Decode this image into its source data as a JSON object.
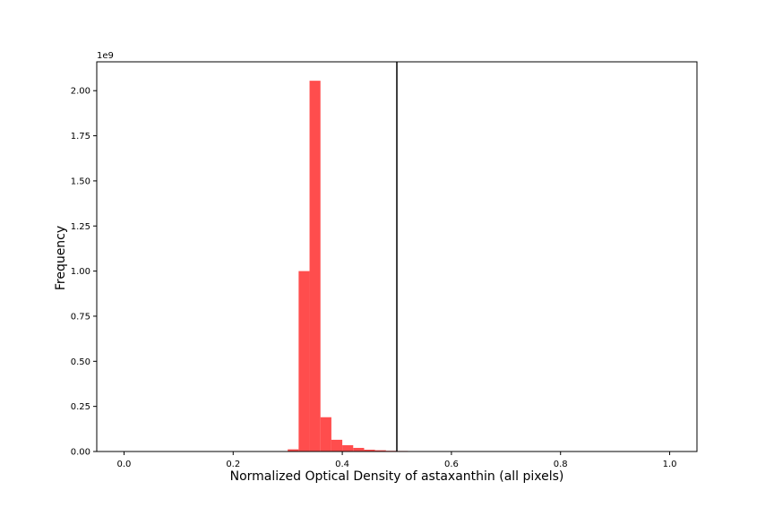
{
  "chart_data": {
    "type": "bar",
    "title": "",
    "xlabel": "Normalized Optical Density of astaxanthin (all pixels)",
    "ylabel": "Frequency",
    "y_offset_text": "1e9",
    "y_scale_factor": 1000000000,
    "xlim": [
      -0.05,
      1.05
    ],
    "ylim": [
      0,
      2.16
    ],
    "x_ticks": [
      0.0,
      0.2,
      0.4,
      0.6,
      0.8,
      1.0
    ],
    "x_tick_labels": [
      "0.0",
      "0.2",
      "0.4",
      "0.6",
      "0.8",
      "1.0"
    ],
    "y_ticks": [
      0.0,
      0.25,
      0.5,
      0.75,
      1.0,
      1.25,
      1.5,
      1.75,
      2.0
    ],
    "y_tick_labels": [
      "0.00",
      "0.25",
      "0.50",
      "0.75",
      "1.00",
      "1.25",
      "1.50",
      "1.75",
      "2.00"
    ],
    "bar_color": "#ff4d4d",
    "bins": [
      {
        "x0": 0.3,
        "x1": 0.32,
        "value": 0.012
      },
      {
        "x0": 0.32,
        "x1": 0.34,
        "value": 1.0
      },
      {
        "x0": 0.34,
        "x1": 0.36,
        "value": 2.055
      },
      {
        "x0": 0.36,
        "x1": 0.38,
        "value": 0.19
      },
      {
        "x0": 0.38,
        "x1": 0.4,
        "value": 0.065
      },
      {
        "x0": 0.4,
        "x1": 0.42,
        "value": 0.035
      },
      {
        "x0": 0.42,
        "x1": 0.44,
        "value": 0.02
      },
      {
        "x0": 0.44,
        "x1": 0.46,
        "value": 0.01
      },
      {
        "x0": 0.46,
        "x1": 0.48,
        "value": 0.007
      },
      {
        "x0": 0.48,
        "x1": 0.5,
        "value": 0.004
      },
      {
        "x0": 0.5,
        "x1": 0.52,
        "value": 0.003
      },
      {
        "x0": 0.52,
        "x1": 0.54,
        "value": 0.002
      },
      {
        "x0": 0.54,
        "x1": 0.56,
        "value": 0.002
      },
      {
        "x0": 0.56,
        "x1": 0.58,
        "value": 0.001
      }
    ],
    "vline": {
      "x": 0.5,
      "color": "#000000"
    },
    "grid": false,
    "legend": "none"
  }
}
